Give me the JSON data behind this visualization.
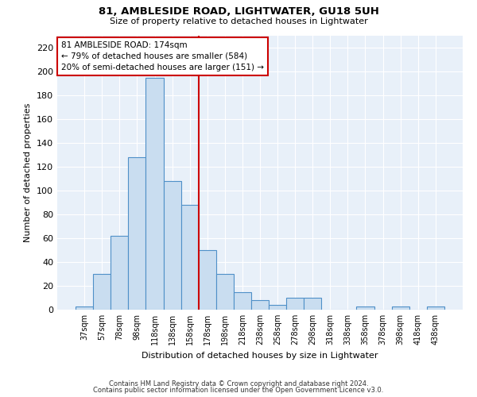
{
  "title": "81, AMBLESIDE ROAD, LIGHTWATER, GU18 5UH",
  "subtitle": "Size of property relative to detached houses in Lightwater",
  "xlabel": "Distribution of detached houses by size in Lightwater",
  "ylabel": "Number of detached properties",
  "bar_labels": [
    "37sqm",
    "57sqm",
    "78sqm",
    "98sqm",
    "118sqm",
    "138sqm",
    "158sqm",
    "178sqm",
    "198sqm",
    "218sqm",
    "238sqm",
    "258sqm",
    "278sqm",
    "298sqm",
    "318sqm",
    "338sqm",
    "358sqm",
    "378sqm",
    "398sqm",
    "418sqm",
    "438sqm"
  ],
  "bar_values": [
    3,
    30,
    62,
    128,
    195,
    108,
    88,
    50,
    30,
    15,
    8,
    4,
    10,
    10,
    0,
    0,
    3,
    0,
    3,
    0,
    3
  ],
  "bar_color": "#c9ddf0",
  "bar_edge_color": "#4f90c8",
  "vline_color": "#cc0000",
  "annotation_text": "81 AMBLESIDE ROAD: 174sqm\n← 79% of detached houses are smaller (584)\n20% of semi-detached houses are larger (151) →",
  "annotation_box_color": "#cc0000",
  "ylim": [
    0,
    230
  ],
  "yticks": [
    0,
    20,
    40,
    60,
    80,
    100,
    120,
    140,
    160,
    180,
    200,
    220
  ],
  "footer1": "Contains HM Land Registry data © Crown copyright and database right 2024.",
  "footer2": "Contains public sector information licensed under the Open Government Licence v3.0.",
  "bg_color": "#e8f0f9",
  "grid_color": "#ffffff",
  "fig_bg_color": "#ffffff"
}
